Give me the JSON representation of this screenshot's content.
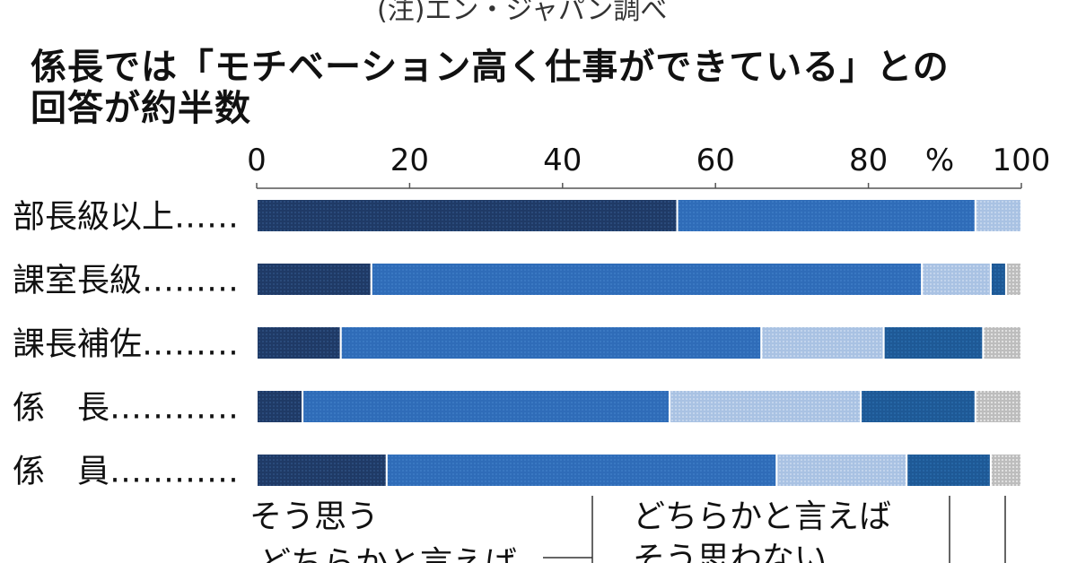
{
  "note": "(注)エン・ジャパン調べ",
  "title_lines": [
    "係長では「モチベーション高く仕事ができている」との",
    "回答が約半数"
  ],
  "chart_data": {
    "type": "bar",
    "orientation": "horizontal",
    "stacked": true,
    "x_unit": "%",
    "xlim": [
      0,
      100
    ],
    "x_ticks": [
      0,
      20,
      40,
      60,
      80,
      100
    ],
    "categories": [
      "部長級以上",
      "課室長級",
      "課長補佐",
      "係　長",
      "係　員"
    ],
    "category_labels": [
      "部長級以上……",
      "課室長級………",
      "課長補佐………",
      "係　長…………",
      "係　員…………"
    ],
    "series": [
      {
        "name": "そう思う",
        "values": [
          55,
          15,
          11,
          6,
          17
        ],
        "color": "#1f3a66"
      },
      {
        "name": "どちらかと言えばそう思う",
        "values": [
          39,
          72,
          55,
          48,
          51
        ],
        "color": "#2f6cb8"
      },
      {
        "name": "どちらかと言えばそう思わない",
        "values": [
          6,
          9,
          16,
          25,
          17
        ],
        "color": "#a9c2e3"
      },
      {
        "name": "",
        "values": [
          0,
          2,
          13,
          15,
          11
        ],
        "color": "#1e5996"
      },
      {
        "name": "",
        "values": [
          0,
          2,
          5,
          6,
          4
        ],
        "color": "#c8c8c8"
      }
    ],
    "legend_labels": [
      "そう思う",
      "どちらかと言えば",
      "どちらかと言えば",
      "そう思わない"
    ],
    "grid": false
  }
}
